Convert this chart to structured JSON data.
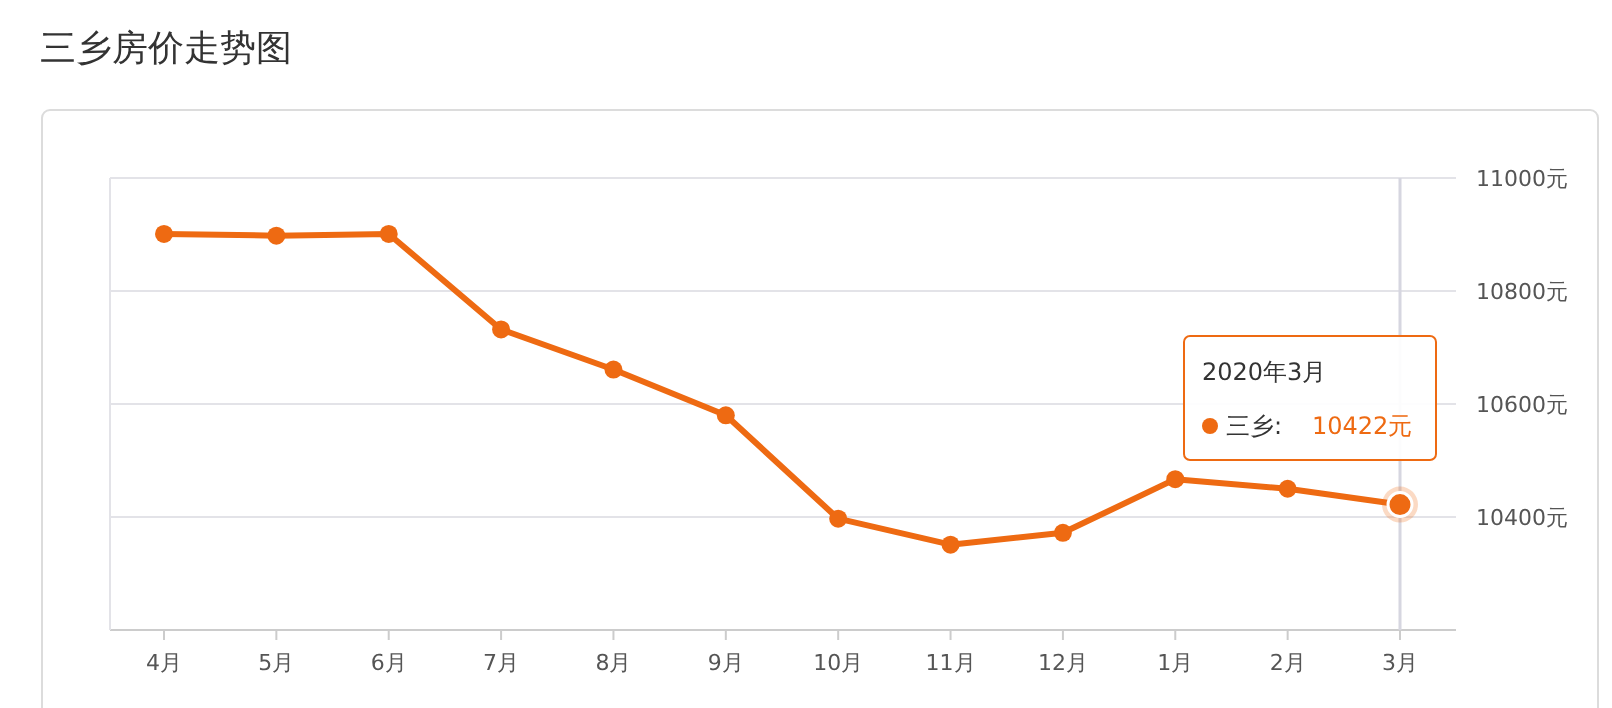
{
  "chart_data": {
    "type": "line",
    "title": "三乡房价走势图",
    "categories": [
      "4月",
      "5月",
      "6月",
      "7月",
      "8月",
      "9月",
      "10月",
      "11月",
      "12月",
      "1月",
      "2月",
      "3月"
    ],
    "series": [
      {
        "name": "三乡:",
        "color": "#ee6a12",
        "values": [
          10901,
          10898,
          10901,
          10732,
          10661,
          10580,
          10397,
          10351,
          10372,
          10467,
          10450,
          10422
        ],
        "value_labels": [
          null,
          null,
          null,
          null,
          null,
          null,
          null,
          null,
          null,
          null,
          null,
          "10422元"
        ]
      }
    ],
    "ylim": [
      10200,
      11000
    ],
    "yticks": [
      {
        "value": 10400,
        "label": "10400元"
      },
      {
        "value": 10600,
        "label": "10600元"
      },
      {
        "value": 10800,
        "label": "10800元"
      },
      {
        "value": 11000,
        "label": "11000元"
      }
    ],
    "grid": "y",
    "legend": "right",
    "marker": "circle",
    "line_style": "solid",
    "ref_lines": [
      {
        "axis": "x",
        "value": "3月",
        "color": "#d6d6e0"
      }
    ],
    "annotations": [
      "2020年3月"
    ]
  }
}
